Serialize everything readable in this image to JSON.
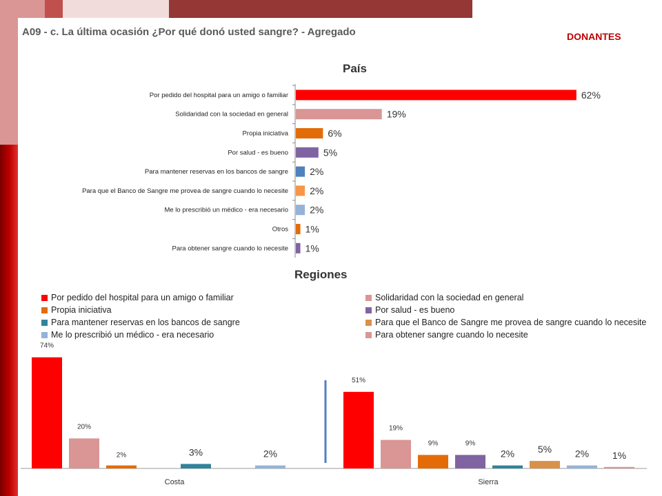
{
  "header": {
    "title": "A09 - c. La última ocasión ¿Por qué donó usted sangre? - Agregado",
    "badge": "DONANTES"
  },
  "colors": {
    "red": "#ff0000",
    "pink": "#d99694",
    "orange": "#e36c09",
    "purple": "#8064a2",
    "blue": "#4f81bd",
    "light_orange": "#f79646",
    "light_blue": "#95b3d7",
    "teal": "#31849b",
    "tan": "#d9914a",
    "divider": "#4f81bd"
  },
  "chart_data": [
    {
      "type": "bar",
      "orientation": "horizontal",
      "title": "País",
      "categories": [
        "Por pedido del hospital para un amigo o familiar",
        "Solidaridad con la sociedad en general",
        "Propia iniciativa",
        "Por salud - es bueno",
        "Para mantener reservas en los bancos de sangre",
        "Para que el Banco de Sangre me provea de sangre cuando lo necesite",
        "Me lo prescribió un médico - era necesario",
        "Otros",
        "Para obtener sangre cuando lo necesite"
      ],
      "values": [
        62,
        19,
        6,
        5,
        2,
        2,
        2,
        1,
        1
      ],
      "labels": [
        "62%",
        "19%",
        "6%",
        "5%",
        "2%",
        "2%",
        "2%",
        "1%",
        "1%"
      ],
      "colors": [
        "#ff0000",
        "#d99694",
        "#e36c09",
        "#8064a2",
        "#4f81bd",
        "#f79646",
        "#95b3d7",
        "#e36c09",
        "#8064a2"
      ],
      "xlim": [
        0,
        64
      ]
    },
    {
      "type": "bar",
      "title": "Regiones",
      "legend_position": "top",
      "categories": [
        "Costa",
        "Sierra"
      ],
      "series": [
        {
          "name": "Por pedido del hospital para un amigo o familiar",
          "color": "#ff0000",
          "values": [
            74,
            51
          ],
          "labels": [
            "74%",
            "51%"
          ]
        },
        {
          "name": "Solidaridad con la sociedad en general",
          "color": "#d99694",
          "values": [
            20,
            19
          ],
          "labels": [
            "20%",
            "19%"
          ]
        },
        {
          "name": "Propia iniciativa",
          "color": "#e36c09",
          "values": [
            2,
            9
          ],
          "labels": [
            "2%",
            "9%"
          ]
        },
        {
          "name": "Por salud - es bueno",
          "color": "#8064a2",
          "values": [
            0,
            9
          ],
          "labels": [
            "",
            "9%"
          ]
        },
        {
          "name": "Para mantener reservas en los bancos de sangre",
          "color": "#31849b",
          "values": [
            3,
            2
          ],
          "labels": [
            "3%",
            "2%"
          ]
        },
        {
          "name": "Para que el Banco de Sangre me provea de sangre cuando lo necesite",
          "color": "#d9914a",
          "values": [
            0,
            5
          ],
          "labels": [
            "",
            "5%"
          ]
        },
        {
          "name": "Me lo prescribió un médico - era necesario",
          "color": "#95b3d7",
          "values": [
            2,
            2
          ],
          "labels": [
            "2%",
            "2%"
          ]
        },
        {
          "name": "Para obtener sangre cuando lo necesite",
          "color": "#d99694",
          "values": [
            0,
            1
          ],
          "labels": [
            "",
            "1%"
          ]
        }
      ],
      "ylim": [
        0,
        80
      ]
    }
  ]
}
